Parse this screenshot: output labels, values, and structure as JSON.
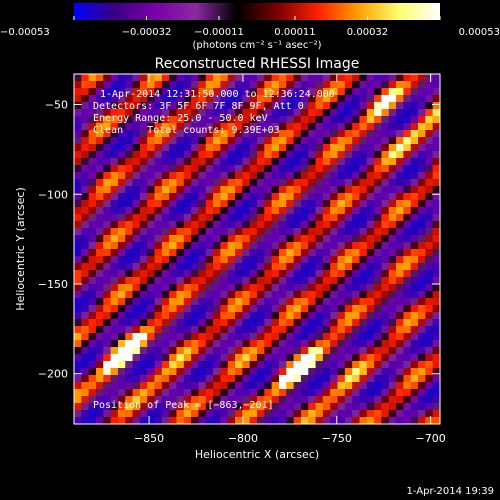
{
  "chart_data": {
    "type": "heatmap",
    "title": "Reconstructed RHESSI Image",
    "xlabel": "Heliocentric X (arcsec)",
    "ylabel": "Heliocentric Y (arcsec)",
    "xlim": [
      -890,
      -695
    ],
    "ylim": [
      -228,
      -33
    ],
    "x_ticks": [
      -850,
      -800,
      -750,
      -700
    ],
    "x_tick_labels": [
      "−850",
      "−800",
      "−750",
      "−700"
    ],
    "y_ticks": [
      -50,
      -100,
      -150,
      -200
    ],
    "y_tick_labels": [
      "−50",
      "−100",
      "−150",
      "−200"
    ],
    "colorbar": {
      "min": -0.00053,
      "max": 0.00053,
      "ticks": [
        -0.00053,
        -0.00032,
        -0.00011,
        0.00011,
        0.00032,
        0.00053
      ],
      "tick_labels": [
        "−0.00053",
        "−0.00032",
        "−0.00011",
        "0.00011",
        "0.00032",
        "0.00053"
      ],
      "unit_label": "(photons cm⁻² s⁻¹ asec⁻²)",
      "colormap": [
        "#0000ff",
        "#3b0080",
        "#7a00a8",
        "#8a2aa0",
        "#000000",
        "#7a0000",
        "#ff2000",
        "#ffa000",
        "#ffff70",
        "#ffffff"
      ]
    },
    "annotations": {
      "time_range": "1-Apr-2014 12:31:50.000 to 12:36:24.000",
      "detectors": "Detectors: 3F 5F 6F 7F 8F 9F, Att 0",
      "energy": "Energy Range: 25.0 - 50.0 keV",
      "clean": "Clean    Total counts: 9.39E+03",
      "peak": "Position of Peak = [−863,−201]"
    },
    "peak": [
      -863,
      -201
    ]
  },
  "footer_timestamp": "1-Apr-2014 19:39"
}
